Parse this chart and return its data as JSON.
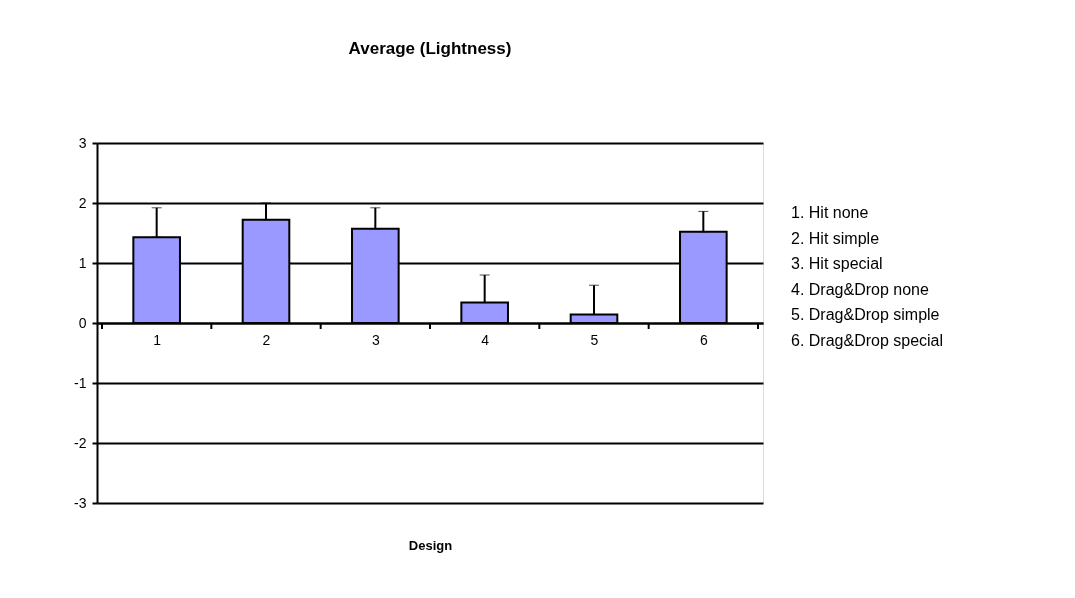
{
  "chart_data": {
    "type": "bar",
    "title": "Average (Lightness)",
    "xlabel": "Design",
    "categories": [
      "1",
      "2",
      "3",
      "4",
      "5",
      "6"
    ],
    "values": [
      1.43,
      1.72,
      1.57,
      0.34,
      0.14,
      1.52
    ],
    "color": "#9999ff",
    "errors": [
      [
        1.43,
        1.92
      ],
      [
        1.72,
        2.0
      ],
      [
        1.57,
        1.92
      ],
      [
        0.34,
        0.8
      ],
      [
        0.14,
        0.63
      ],
      [
        1.52,
        1.86
      ]
    ],
    "ylim": [
      -3,
      3
    ],
    "yticks": [
      -3,
      -2,
      -1,
      0,
      1,
      2,
      3
    ],
    "grid": "y",
    "annotations": [
      "1. Hit none",
      "2. Hit simple",
      "3. Hit special",
      "4. Drag&Drop none",
      "5. Drag&Drop simple",
      "6. Drag&Drop special"
    ]
  }
}
